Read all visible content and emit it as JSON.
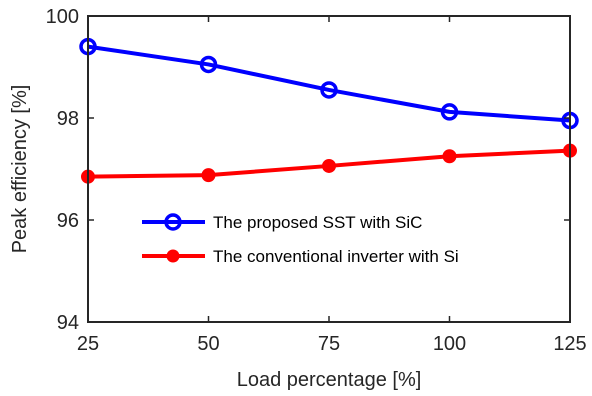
{
  "chart_data": {
    "type": "line",
    "x": [
      25,
      50,
      75,
      100,
      125
    ],
    "xlim": [
      25,
      125
    ],
    "ylim": [
      94,
      100
    ],
    "x_ticks": [
      25,
      50,
      75,
      100,
      125
    ],
    "y_ticks": [
      94,
      96,
      98,
      100
    ],
    "xlabel": "Load percentage [%]",
    "ylabel": "Peak efficiency [%]",
    "grid": false,
    "legend_position": "center",
    "series": [
      {
        "name": "The proposed SST with SiC",
        "values": [
          99.4,
          99.05,
          98.55,
          98.12,
          97.95
        ],
        "color": "#0000ff",
        "marker": "open-circle"
      },
      {
        "name": "The conventional inverter with Si",
        "values": [
          96.85,
          96.88,
          97.06,
          97.25,
          97.36
        ],
        "color": "#ff0000",
        "marker": "filled-dot"
      }
    ]
  }
}
